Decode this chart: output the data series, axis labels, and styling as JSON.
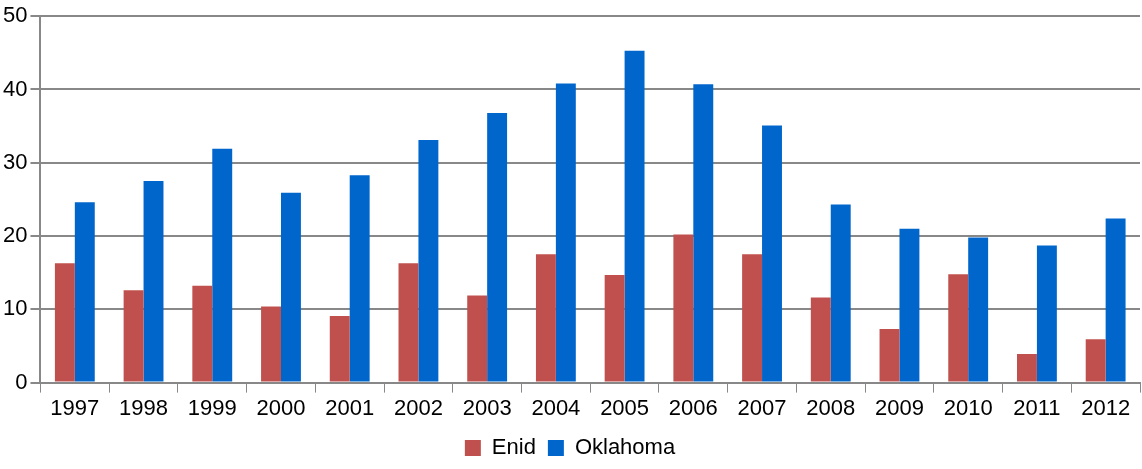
{
  "chart_data": {
    "type": "bar",
    "categories": [
      "1997",
      "1998",
      "1999",
      "2000",
      "2001",
      "2002",
      "2003",
      "2004",
      "2005",
      "2006",
      "2007",
      "2008",
      "2009",
      "2010",
      "2011",
      "2012"
    ],
    "series": [
      {
        "name": "Enid",
        "color": "#c0504d",
        "values": [
          16.3,
          12.6,
          13.2,
          10.4,
          9.1,
          16.3,
          11.9,
          17.5,
          14.7,
          20.2,
          17.5,
          11.6,
          7.3,
          14.8,
          3.9,
          5.9
        ]
      },
      {
        "name": "Oklahoma",
        "color": "#0066cc",
        "values": [
          24.6,
          27.5,
          31.9,
          25.9,
          28.3,
          33.1,
          36.8,
          40.8,
          45.3,
          40.7,
          35.1,
          24.3,
          21.0,
          19.8,
          18.7,
          22.4
        ]
      }
    ],
    "ylim": [
      0,
      50
    ],
    "yticks": [
      0,
      10,
      20,
      30,
      40,
      50
    ],
    "grid": "y",
    "legend": "bottom"
  }
}
